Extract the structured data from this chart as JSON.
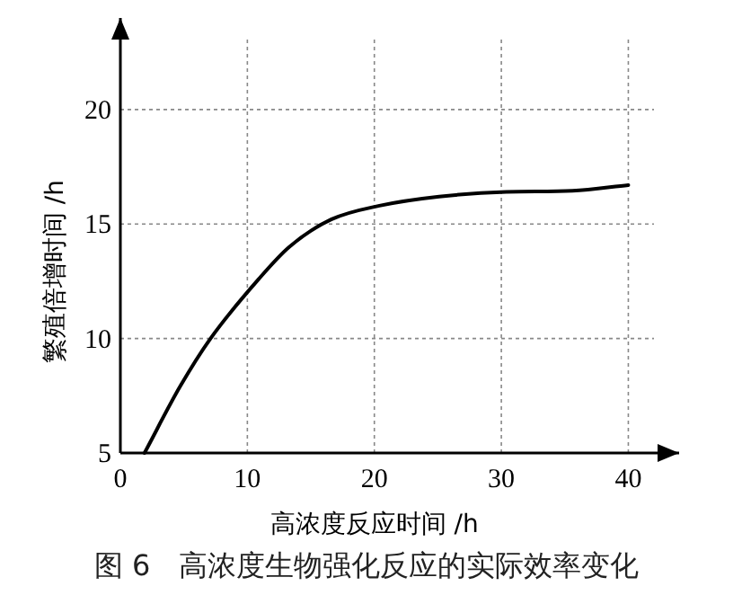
{
  "chart_data": {
    "type": "line",
    "xlabel": "高浓度反应时间 /h",
    "ylabel": "繁殖倍增时间 /h",
    "annotations": [
      "图 6　高浓度生物强化反应的实际效率变化"
    ],
    "series": [
      {
        "color": "#000000",
        "x": [
          1.9,
          4.7,
          7.1,
          10.9,
          13.3,
          16.6,
          20.4,
          25.1,
          30.4,
          35.6,
          40
        ],
        "values": [
          5,
          7.9,
          10,
          12.6,
          14,
          15.2,
          15.8,
          16.2,
          16.4,
          16.45,
          16.7
        ]
      }
    ],
    "xlim": [
      0,
      44
    ],
    "ylim": [
      5,
      24
    ],
    "xticks": [
      0,
      10,
      20,
      30,
      40
    ],
    "yticks": [
      5,
      10,
      15,
      20
    ],
    "grid": true,
    "marker": "none",
    "line_style": "solid"
  }
}
